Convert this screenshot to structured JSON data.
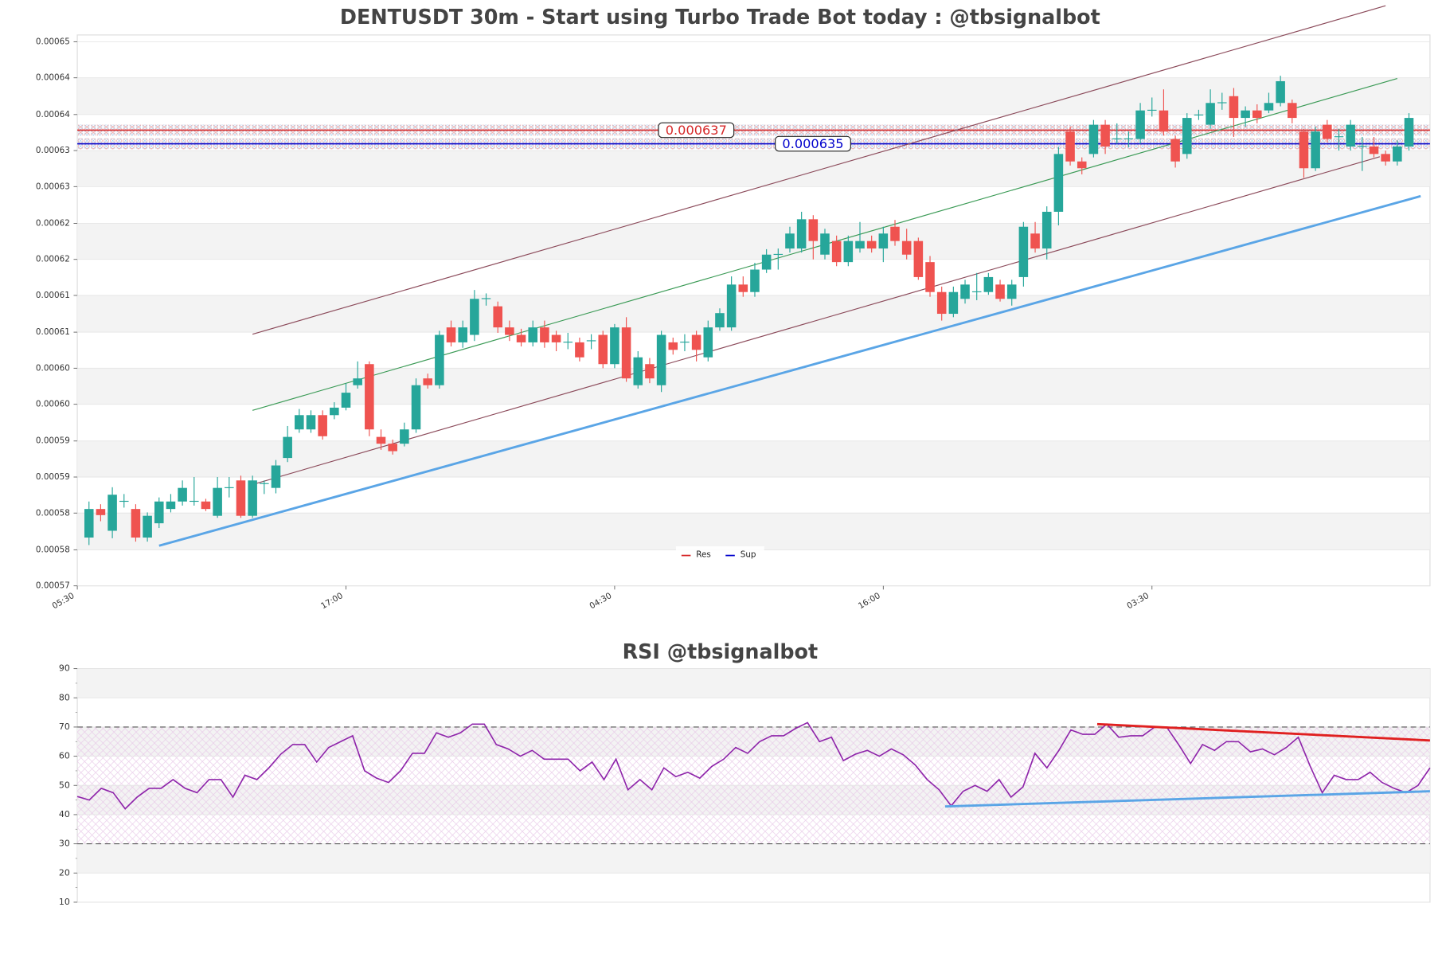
{
  "chart_data": [
    {
      "type": "candlestick",
      "title": "DENTUSDT 30m - Start using Turbo Trade Bot today : @tbsignalbot",
      "up_color": "#26a69a",
      "down_color": "#ef5350",
      "open": [
        0.0005771,
        0.0005813,
        0.0005781,
        0.0005824,
        0.0005813,
        0.0005771,
        0.0005792,
        0.0005813,
        0.0005824,
        0.0005824,
        0.0005824,
        0.0005803,
        0.0005844,
        0.0005855,
        0.0005803,
        0.000585,
        0.0005844,
        0.0005888,
        0.000593,
        0.000593,
        0.0005951,
        0.0005951,
        0.0005962,
        0.0005995,
        0.0006026,
        0.0005919,
        0.0005909,
        0.0005909,
        0.000593,
        0.0006005,
        0.0005995,
        0.000608,
        0.0006058,
        0.0006069,
        0.0006122,
        0.0006111,
        0.000608,
        0.0006069,
        0.0006058,
        0.000608,
        0.0006069,
        0.0006058,
        0.0006058,
        0.000606,
        0.0006069,
        0.0006026,
        0.000608,
        0.0005995,
        0.0006026,
        0.0005995,
        0.0006058,
        0.0006058,
        0.0006069,
        0.0006036,
        0.000608,
        0.000608,
        0.0006143,
        0.0006132,
        0.0006165,
        0.0006187,
        0.0006196,
        0.0006196,
        0.0006239,
        0.0006187,
        0.0006207,
        0.0006176,
        0.0006196,
        0.0006207,
        0.0006196,
        0.0006228,
        0.0006207,
        0.0006207,
        0.0006176,
        0.0006132,
        0.00061,
        0.0006122,
        0.0006132,
        0.0006132,
        0.0006143,
        0.0006122,
        0.0006154,
        0.0006218,
        0.0006196,
        0.000625,
        0.0006368,
        0.0006324,
        0.0006335,
        0.0006378,
        0.0006357,
        0.0006357,
        0.0006357,
        0.0006399,
        0.0006399,
        0.0006357,
        0.0006335,
        0.0006392,
        0.0006378,
        0.000641,
        0.000642,
        0.0006388,
        0.0006399,
        0.0006399,
        0.000641,
        0.000641,
        0.0006368,
        0.0006314,
        0.0006378,
        0.000636,
        0.0006346,
        0.0006346,
        0.0006346,
        0.0006335,
        0.0006324,
        0.0006346
      ],
      "high": [
        0.0005824,
        0.000582,
        0.0005845,
        0.0005835,
        0.000582,
        0.0005808,
        0.000583,
        0.0005835,
        0.0005855,
        0.000586,
        0.0005828,
        0.000586,
        0.000586,
        0.0005862,
        0.0005862,
        0.0005855,
        0.0005885,
        0.0005935,
        0.000596,
        0.0005958,
        0.0005958,
        0.000597,
        0.0005998,
        0.000603,
        0.000603,
        0.000593,
        0.0005915,
        0.000594,
        0.0006005,
        0.0006012,
        0.0006075,
        0.000609,
        0.000609,
        0.0006135,
        0.000613,
        0.0006118,
        0.000609,
        0.0006078,
        0.000609,
        0.000609,
        0.0006075,
        0.0006072,
        0.0006065,
        0.000607,
        0.0006075,
        0.0006085,
        0.0006095,
        0.0006045,
        0.0006035,
        0.0006075,
        0.0006065,
        0.000607,
        0.0006075,
        0.000609,
        0.0006108,
        0.0006155,
        0.0006155,
        0.0006175,
        0.0006195,
        0.0006196,
        0.0006228,
        0.000625,
        0.0006245,
        0.0006225,
        0.0006215,
        0.0006215,
        0.0006235,
        0.0006215,
        0.0006228,
        0.0006238,
        0.0006225,
        0.0006212,
        0.0006185,
        0.000614,
        0.000614,
        0.000615,
        0.000616,
        0.000616,
        0.000615,
        0.000615,
        0.0006235,
        0.0006235,
        0.0006258,
        0.0006345,
        0.0006375,
        0.000633,
        0.0006385,
        0.0006385,
        0.000638,
        0.0006368,
        0.000641,
        0.0006418,
        0.000643,
        0.0006362,
        0.0006395,
        0.00064,
        0.000643,
        0.0006425,
        0.0006432,
        0.0006405,
        0.0006408,
        0.0006425,
        0.000645,
        0.0006415,
        0.0006372,
        0.0006375,
        0.0006385,
        0.0006372,
        0.0006385,
        0.000636,
        0.000636,
        0.000634,
        0.0006355,
        0.0006395
      ],
      "low": [
        0.000576,
        0.0005795,
        0.000577,
        0.0005815,
        0.0005765,
        0.0005765,
        0.0005785,
        0.0005808,
        0.0005818,
        0.0005818,
        0.000581,
        0.00058,
        0.000583,
        0.00058,
        0.00058,
        0.0005835,
        0.0005836,
        0.0005882,
        0.0005925,
        0.0005925,
        0.0005915,
        0.0005945,
        0.0005958,
        0.000599,
        0.000592,
        0.00059,
        0.0005893,
        0.0005905,
        0.0005925,
        0.000599,
        0.000599,
        0.0006052,
        0.000605,
        0.000606,
        0.0006112,
        0.0006072,
        0.000606,
        0.0006052,
        0.0006052,
        0.000605,
        0.0006045,
        0.0006048,
        0.000603,
        0.0006048,
        0.000602,
        0.000602,
        0.0006,
        0.000599,
        0.0005998,
        0.0005985,
        0.000604,
        0.0006045,
        0.000603,
        0.000603,
        0.0006075,
        0.0006075,
        0.0006125,
        0.0006125,
        0.000616,
        0.0006165,
        0.000619,
        0.000619,
        0.000618,
        0.000618,
        0.000617,
        0.000617,
        0.000619,
        0.000619,
        0.0006176,
        0.00062,
        0.000618,
        0.000615,
        0.0006125,
        0.000609,
        0.0006095,
        0.0006115,
        0.000612,
        0.0006128,
        0.0006118,
        0.0006112,
        0.000614,
        0.000619,
        0.000618,
        0.000623,
        0.0006318,
        0.0006305,
        0.000633,
        0.0006335,
        0.000635,
        0.0006345,
        0.000635,
        0.000639,
        0.0006362,
        0.0006315,
        0.0006328,
        0.0006385,
        0.0006372,
        0.00064,
        0.000636,
        0.0006375,
        0.000638,
        0.0006395,
        0.0006405,
        0.000638,
        0.00063,
        0.000631,
        0.0006352,
        0.000634,
        0.000634,
        0.000631,
        0.000633,
        0.0006318,
        0.0006318,
        0.000634
      ],
      "close": [
        0.0005813,
        0.0005804,
        0.0005834,
        0.0005825,
        0.0005771,
        0.0005803,
        0.0005824,
        0.0005824,
        0.0005844,
        0.0005825,
        0.0005813,
        0.0005844,
        0.0005845,
        0.0005803,
        0.0005855,
        0.0005851,
        0.0005877,
        0.0005919,
        0.0005951,
        0.0005951,
        0.000592,
        0.0005962,
        0.0005984,
        0.0006005,
        0.000593,
        0.0005909,
        0.0005898,
        0.000593,
        0.0005995,
        0.0005995,
        0.0006069,
        0.0006058,
        0.000608,
        0.0006122,
        0.0006123,
        0.000608,
        0.0006069,
        0.0006058,
        0.000608,
        0.0006058,
        0.0006058,
        0.0006059,
        0.0006036,
        0.0006061,
        0.0006026,
        0.000608,
        0.0006005,
        0.0006036,
        0.0006005,
        0.0006069,
        0.0006047,
        0.0006059,
        0.0006047,
        0.000608,
        0.0006101,
        0.0006143,
        0.0006132,
        0.0006165,
        0.0006187,
        0.0006188,
        0.0006218,
        0.0006239,
        0.0006207,
        0.0006218,
        0.0006176,
        0.0006207,
        0.0006207,
        0.0006196,
        0.0006218,
        0.0006207,
        0.0006187,
        0.0006154,
        0.0006132,
        0.00061,
        0.0006132,
        0.0006143,
        0.0006133,
        0.0006154,
        0.0006122,
        0.0006143,
        0.0006228,
        0.0006196,
        0.000625,
        0.0006335,
        0.0006324,
        0.0006314,
        0.0006378,
        0.0006346,
        0.0006358,
        0.0006358,
        0.0006399,
        0.00064,
        0.0006368,
        0.0006324,
        0.0006388,
        0.0006393,
        0.000641,
        0.0006411,
        0.0006388,
        0.0006399,
        0.0006388,
        0.000641,
        0.0006442,
        0.0006388,
        0.0006314,
        0.0006368,
        0.0006357,
        0.0006361,
        0.0006378,
        0.0006347,
        0.0006335,
        0.0006324,
        0.0006346,
        0.0006388
      ],
      "xlim": [
        -1,
        114.8
      ],
      "xticks": [
        {
          "value": -1,
          "label": "05:30"
        },
        {
          "value": 22,
          "label": "17:00"
        },
        {
          "value": 45,
          "label": "04:30"
        },
        {
          "value": 68,
          "label": "16:00"
        },
        {
          "value": 91,
          "label": "03:30"
        }
      ],
      "ylim": [
        0.00057,
        0.000651
      ],
      "yticks": [
        0.00057,
        {
          "value": 0.0005753,
          "label": "0.00058"
        },
        {
          "value": 0.0005807,
          "label": "0.00058"
        },
        {
          "value": 0.000586,
          "label": "0.00059"
        },
        {
          "value": 0.0005913,
          "label": "0.00059"
        },
        {
          "value": 0.0005967,
          "label": "0.00060"
        },
        {
          "value": 0.000602,
          "label": "0.00060"
        },
        {
          "value": 0.0006073,
          "label": "0.00061"
        },
        {
          "value": 0.0006127,
          "label": "0.00061"
        },
        {
          "value": 0.000618,
          "label": "0.00062"
        },
        {
          "value": 0.0006233,
          "label": "0.00062"
        },
        {
          "value": 0.0006287,
          "label": "0.00063"
        },
        {
          "value": 0.000634,
          "label": "0.00063"
        },
        {
          "value": 0.0006393,
          "label": "0.00064"
        },
        {
          "value": 0.0006447,
          "label": "0.00064"
        },
        0.00065
      ],
      "grid": true,
      "levels": [
        {
          "name": "Res",
          "value": 0.000637,
          "color": "#d62728"
        },
        {
          "name": "Sup",
          "value": 0.000635,
          "color": "#0000cc"
        }
      ],
      "legend": "lower center",
      "trendlines": [
        {
          "color": "#8b4a5a",
          "width": 1,
          "x": [
            14,
            111
          ],
          "y": [
            0.000607,
            0.0006553
          ]
        },
        {
          "color": "#3a9a55",
          "width": 1,
          "x": [
            14,
            112
          ],
          "y": [
            0.0005958,
            0.0006446
          ]
        },
        {
          "color": "#8b4a5a",
          "width": 1,
          "x": [
            14,
            110.5
          ],
          "y": [
            0.0005849,
            0.0006331
          ]
        },
        {
          "color": "#5aa5e6",
          "width": 2.5,
          "x": [
            6,
            114
          ],
          "y": [
            0.0005759,
            0.0006273
          ]
        }
      ]
    },
    {
      "type": "line",
      "title": "RSI @tbsignalbot",
      "series": [
        {
          "color": "#8e24aa",
          "values": [
            46.2,
            45,
            49,
            47.5,
            42,
            46,
            49,
            49,
            52,
            49,
            47.5,
            52,
            52,
            46,
            53.5,
            52,
            56,
            60.7,
            64,
            64,
            58,
            63,
            65,
            67,
            55,
            52.5,
            51,
            55,
            61,
            61,
            68,
            66.5,
            68,
            71,
            71,
            64,
            62.5,
            60,
            62,
            59,
            59,
            59,
            55,
            58,
            52,
            59,
            48.5,
            52,
            48.5,
            56,
            53,
            54.5,
            52.5,
            56.5,
            59,
            63,
            61,
            65,
            67,
            67,
            69.5,
            71.5,
            65,
            66.5,
            58.5,
            60.7,
            62,
            60,
            62.5,
            60.5,
            57,
            52,
            48.5,
            43,
            48,
            50,
            48,
            52,
            46,
            49.5,
            61,
            56,
            62,
            69,
            67.5,
            67.5,
            71,
            66.5,
            67,
            67,
            70,
            70,
            64,
            57.5,
            64,
            62,
            65,
            65,
            61.5,
            62.5,
            60.5,
            63,
            66.5,
            56.5,
            47.5,
            53.5,
            52,
            52,
            54.5,
            51,
            49,
            47.5,
            50,
            56
          ]
        }
      ],
      "xlim": [
        0,
        113
      ],
      "ylim": [
        10,
        90
      ],
      "yticks": [
        10,
        20,
        30,
        40,
        50,
        60,
        70,
        80,
        90
      ],
      "hlines": [
        70,
        30
      ],
      "band": [
        30,
        70
      ],
      "grid": true,
      "trendlines": [
        {
          "color": "#e02020",
          "width": 2.5,
          "x": [
            85.2,
            113
          ],
          "y": [
            71,
            65.4
          ]
        },
        {
          "color": "#5aa5e6",
          "width": 2.5,
          "x": [
            72.5,
            113
          ],
          "y": [
            42.8,
            48
          ]
        }
      ]
    }
  ]
}
